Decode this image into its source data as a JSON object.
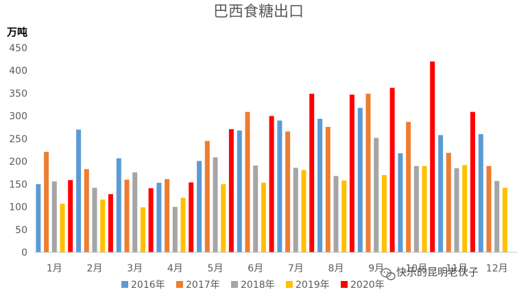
{
  "chart_data": {
    "type": "bar",
    "title": "巴西食糖出口",
    "ylabel": "万吨",
    "xlabel": "",
    "ylim": [
      0,
      450
    ],
    "yticks": [
      0,
      50,
      100,
      150,
      200,
      250,
      300,
      350,
      400,
      450
    ],
    "grid": false,
    "legend_position": "bottom",
    "categories": [
      "1月",
      "2月",
      "3月",
      "4月",
      "5月",
      "6月",
      "7月",
      "8月",
      "9月",
      "10月",
      "11月",
      "12月"
    ],
    "series": [
      {
        "name": "2016年",
        "color": "#5b9bd5",
        "values": [
          150,
          270,
          207,
          153,
          201,
          268,
          290,
          294,
          318,
          218,
          258,
          260
        ]
      },
      {
        "name": "2017年",
        "color": "#ed7d31",
        "values": [
          221,
          183,
          160,
          161,
          245,
          309,
          266,
          276,
          349,
          287,
          219,
          190
        ]
      },
      {
        "name": "2018年",
        "color": "#a5a5a5",
        "values": [
          156,
          142,
          176,
          100,
          209,
          191,
          186,
          168,
          252,
          190,
          185,
          157
        ]
      },
      {
        "name": "2019年",
        "color": "#ffc000",
        "values": [
          107,
          116,
          99,
          120,
          150,
          153,
          181,
          158,
          170,
          190,
          192,
          142
        ]
      },
      {
        "name": "2020年",
        "color": "#ff0000",
        "values": [
          159,
          128,
          141,
          154,
          271,
          300,
          349,
          347,
          362,
          420,
          309,
          null
        ]
      }
    ]
  },
  "watermark": {
    "icon": "wechat-icon",
    "text": "快乐的昆明老伙子"
  }
}
